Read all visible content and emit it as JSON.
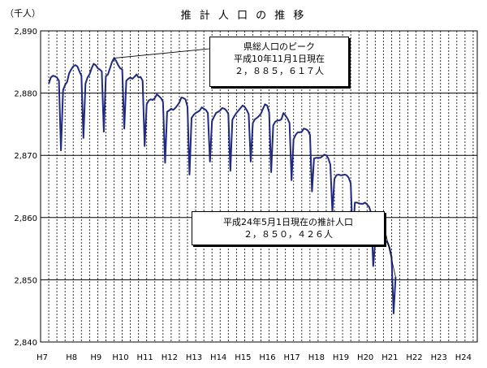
{
  "chart_data": {
    "type": "line",
    "title": "推 計 人 口 の 推 移",
    "ylabel": "（千人）",
    "ylim": [
      2840,
      2890
    ],
    "yticks": [
      2840,
      2850,
      2860,
      2870,
      2880,
      2890
    ],
    "ytick_labels": [
      "2,840",
      "2,850",
      "2,860",
      "2,870",
      "2,880",
      "2,890"
    ],
    "xtick_labels": [
      "H7",
      "H8",
      "H9",
      "H10",
      "H11",
      "H12",
      "H13",
      "H14",
      "H15",
      "H16",
      "H17",
      "H18",
      "H19",
      "H20",
      "H21",
      "H22",
      "H23",
      "H24"
    ],
    "xtick_months": [
      0,
      12,
      24,
      36,
      48,
      60,
      72,
      84,
      96,
      108,
      120,
      132,
      144,
      156,
      168,
      180,
      192,
      204
    ],
    "x_unit": "months since H7/1 (monthly estimates)",
    "grid": {
      "horizontal": true,
      "vertical_dashed": true
    },
    "line_color": "#1f2a80",
    "series": [
      {
        "name": "",
        "values": [
          2881.5,
          2882.5,
          2882.8,
          2882.7,
          2882.5,
          2882.0,
          2870.8,
          2880.5,
          2881.3,
          2881.8,
          2883.2,
          2883.8,
          2884.3,
          2884.5,
          2884.3,
          2883.5,
          2882.8,
          2872.8,
          2881.5,
          2882.5,
          2883.0,
          2884.0,
          2884.7,
          2884.5,
          2884.0,
          2883.8,
          2883.5,
          2873.8,
          2882.7,
          2883.0,
          2884.0,
          2885.0,
          2885.617,
          2885.2,
          2884.5,
          2884.0,
          2883.8,
          2874.3,
          2882.0,
          2882.3,
          2882.5,
          2882.3,
          2882.6,
          2883.0,
          2882.5,
          2882.6,
          2882.0,
          2871.5,
          2878.2,
          2878.8,
          2879.0,
          2878.9,
          2879.2,
          2879.8,
          2879.5,
          2879.2,
          2878.6,
          2868.8,
          2877.0,
          2877.2,
          2877.5,
          2877.3,
          2877.6,
          2878.0,
          2878.5,
          2879.3,
          2879.2,
          2879.0,
          2877.8,
          2866.9,
          2876.0,
          2876.5,
          2876.8,
          2877.0,
          2877.2,
          2877.7,
          2877.5,
          2877.3,
          2876.8,
          2869.0,
          2875.5,
          2876.2,
          2876.8,
          2877.0,
          2877.2,
          2877.6,
          2877.5,
          2877.2,
          2876.7,
          2867.5,
          2875.7,
          2876.3,
          2876.8,
          2877.2,
          2877.6,
          2878.0,
          2877.8,
          2877.3,
          2876.6,
          2869.0,
          2875.2,
          2875.8,
          2876.0,
          2876.3,
          2876.7,
          2877.5,
          2878.2,
          2878.0,
          2876.9,
          2867.3,
          2874.8,
          2875.4,
          2875.6,
          2875.6,
          2875.8,
          2876.8,
          2876.4,
          2875.9,
          2875.2,
          2866.0,
          2872.6,
          2873.3,
          2873.7,
          2873.7,
          2873.8,
          2874.3,
          2874.2,
          2874.0,
          2873.3,
          2864.2,
          2869.5,
          2869.6,
          2869.6,
          2869.6,
          2869.8,
          2870.1,
          2870.0,
          2869.5,
          2868.5,
          2860.9,
          2866.2,
          2866.8,
          2866.9,
          2866.8,
          2866.8,
          2866.9,
          2866.8,
          2866.4,
          2865.5,
          2856.6,
          2862.4,
          2862.4,
          2862.3,
          2862.2,
          2862.2,
          2862.4,
          2862.1,
          2861.7,
          2860.7,
          2852.2,
          2856.2,
          2856.2,
          2856.1,
          2856.1,
          2856.2,
          2856.3,
          2856.0,
          2855.2,
          2853.7,
          2844.6,
          2850.426
        ]
      }
    ],
    "annotations": [
      {
        "lines": [
          "県総人口のピーク",
          "平成10年11月1日現在",
          "２，８８５，６１７人"
        ],
        "x": 32,
        "y": 2885.617
      },
      {
        "lines": [
          "平成24年5月1日現在の推計人口",
          "２，８５０，４２６人"
        ],
        "x": 170,
        "y": 2850.426
      }
    ]
  }
}
